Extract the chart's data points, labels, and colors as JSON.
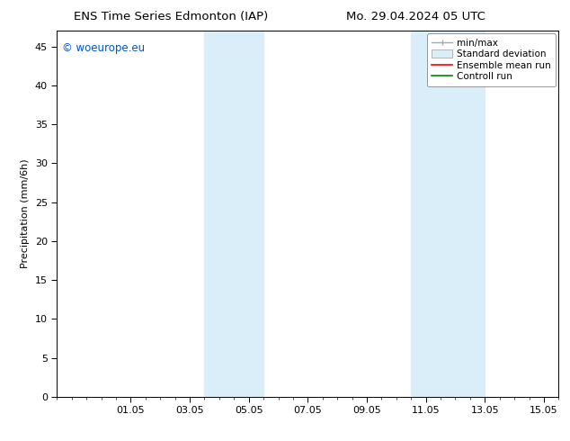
{
  "title_left": "ENS Time Series Edmonton (IAP)",
  "title_right": "Mo. 29.04.2024 05 UTC",
  "ylabel": "Precipitation (mm/6h)",
  "xlim": [
    -0.5,
    16.5
  ],
  "ylim": [
    0,
    47
  ],
  "yticks": [
    0,
    5,
    10,
    15,
    20,
    25,
    30,
    35,
    40,
    45
  ],
  "xtick_pos": [
    2,
    4,
    6,
    8,
    10,
    12,
    14,
    16
  ],
  "xtick_labels": [
    "01.05",
    "03.05",
    "05.05",
    "07.05",
    "09.05",
    "11.05",
    "13.05",
    "15.05"
  ],
  "shaded_regions": [
    [
      4.5,
      5.5
    ],
    [
      5.5,
      6.5
    ],
    [
      11.5,
      12.5
    ],
    [
      12.5,
      14.0
    ]
  ],
  "shade_color": "#daeef9",
  "watermark": "© woeurope.eu",
  "watermark_color": "#0055cc",
  "background_color": "#ffffff",
  "title_fontsize": 9.5,
  "ylabel_fontsize": 8,
  "tick_fontsize": 8,
  "legend_fontsize": 7.5,
  "watermark_fontsize": 8.5
}
